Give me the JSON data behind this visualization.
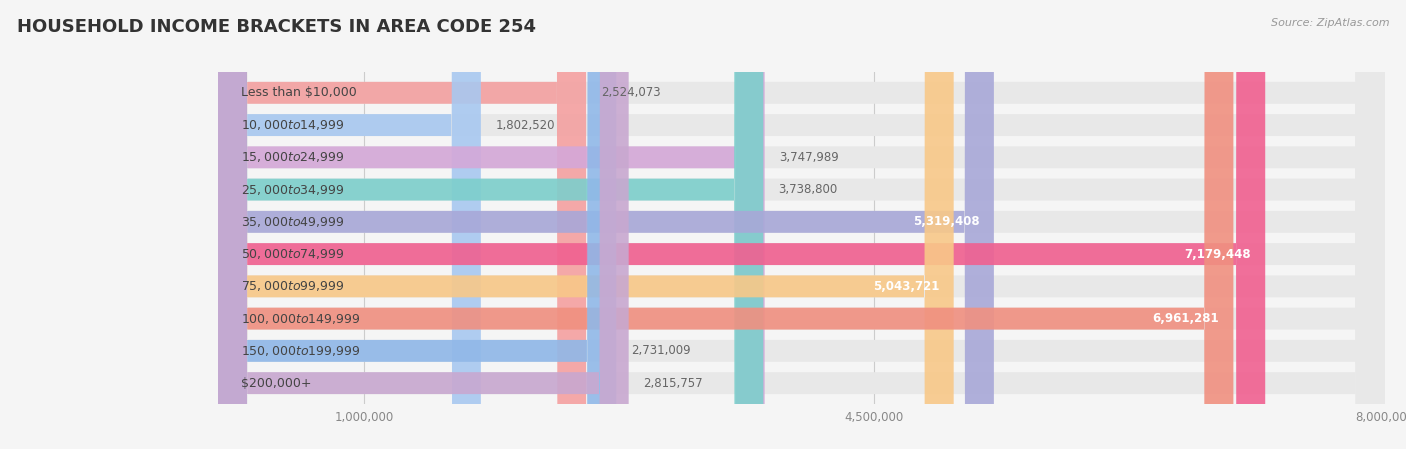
{
  "title": "HOUSEHOLD INCOME BRACKETS IN AREA CODE 254",
  "source": "Source: ZipAtlas.com",
  "categories": [
    "Less than $10,000",
    "$10,000 to $14,999",
    "$15,000 to $24,999",
    "$25,000 to $34,999",
    "$35,000 to $49,999",
    "$50,000 to $74,999",
    "$75,000 to $99,999",
    "$100,000 to $149,999",
    "$150,000 to $199,999",
    "$200,000+"
  ],
  "values": [
    2524073,
    1802520,
    3747989,
    3738800,
    5319408,
    7179448,
    5043721,
    6961281,
    2731009,
    2815757
  ],
  "bar_colors": [
    "#f4a0a0",
    "#a8c8f0",
    "#d4a8d8",
    "#7dcfcc",
    "#a8a8d8",
    "#f06090",
    "#f8c888",
    "#f09080",
    "#90b8e8",
    "#c8a8d0"
  ],
  "background_color": "#f5f5f5",
  "bar_bg_color": "#e8e8e8",
  "xlim": [
    0,
    8000000
  ],
  "xticks": [
    1000000,
    4500000,
    8000000
  ],
  "xtick_labels": [
    "1,000,000",
    "4,500,000",
    "8,000,000"
  ],
  "title_fontsize": 13,
  "label_fontsize": 9,
  "value_fontsize": 8.5,
  "value_threshold": 4200000
}
